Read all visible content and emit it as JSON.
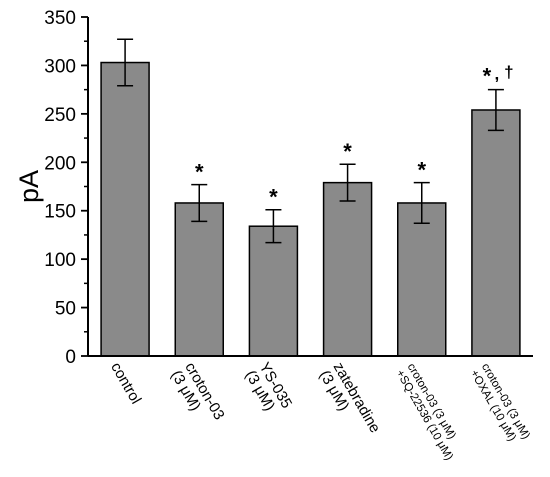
{
  "chart_data": {
    "type": "bar",
    "ylabel": "pA",
    "xlabel": "",
    "title": "",
    "ylim": [
      0,
      350
    ],
    "yticks": [
      "0",
      "50",
      "100",
      "150",
      "200",
      "250",
      "300",
      "350"
    ],
    "bar_color": "#8a8a8a",
    "grid": false,
    "categories": [
      {
        "lines": [
          "control"
        ]
      },
      {
        "lines": [
          "croton-03",
          "(3 μM)"
        ]
      },
      {
        "lines": [
          "YS-035",
          "(3 μM)"
        ]
      },
      {
        "lines": [
          "zatebradine",
          "(3 μM)"
        ]
      },
      {
        "lines": [
          "croton-03 (3 μM)",
          "+SQ-22536 (10 μM)"
        ]
      },
      {
        "lines": [
          "croton-03 (3 μM)",
          "+OXAL (10 μM)"
        ]
      }
    ],
    "values": [
      303,
      158,
      134,
      179,
      158,
      254
    ],
    "errors": [
      24,
      19,
      17,
      19,
      21,
      21
    ],
    "annotations": [
      "",
      "*",
      "*",
      "*",
      "*",
      "*,†"
    ]
  }
}
